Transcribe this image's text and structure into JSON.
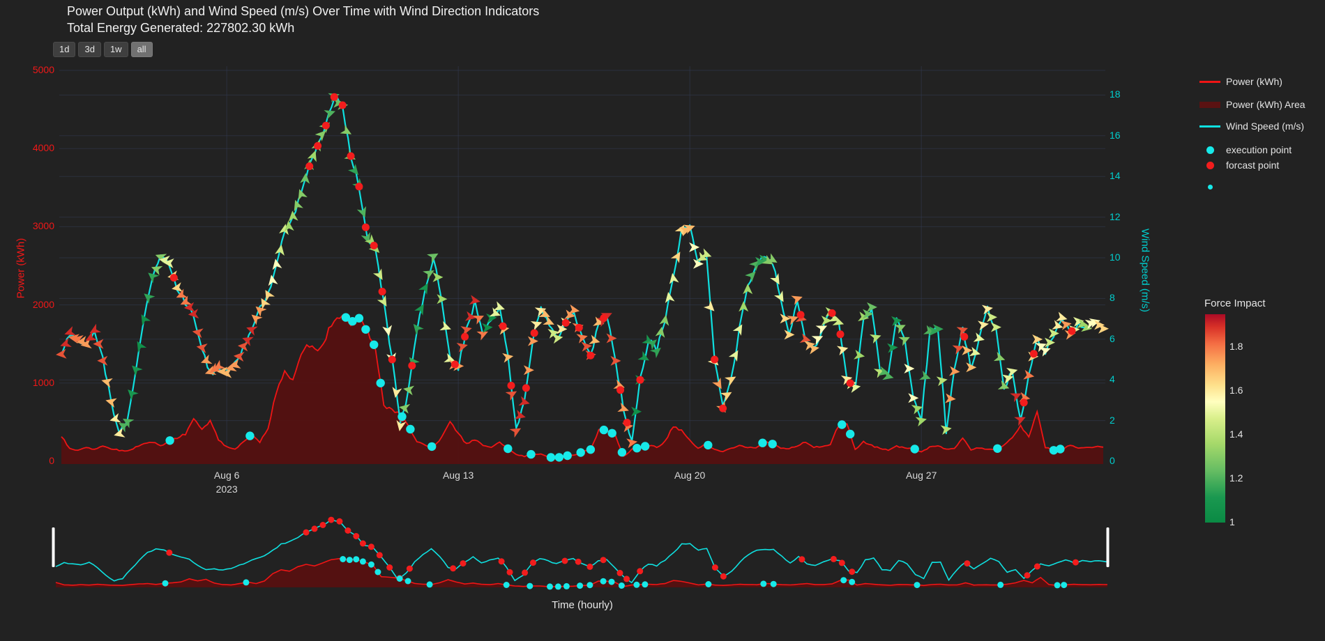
{
  "header": {
    "title": "Power Output (kWh) and Wind Speed (m/s) Over Time with Wind Direction Indicators",
    "subtitle": "Total Energy Generated: 227802.30 kWh"
  },
  "range_selector": {
    "buttons": [
      {
        "label": "1d",
        "active": false
      },
      {
        "label": "3d",
        "active": false
      },
      {
        "label": "1w",
        "active": false
      },
      {
        "label": "all",
        "active": true
      }
    ]
  },
  "axes": {
    "y_left": {
      "title": "Power (kWh)",
      "color": "#f01818",
      "ticks": [
        5000,
        4000,
        3000,
        2000,
        1000,
        0
      ]
    },
    "y_right": {
      "title": "Wind Speed (m/s)",
      "color": "#00cfcf",
      "ticks": [
        18,
        16,
        14,
        12,
        10,
        8,
        6,
        4,
        2,
        0
      ]
    },
    "x": {
      "title": "Time (hourly)",
      "ticks": [
        {
          "label": "Aug 6",
          "sub": "2023",
          "day": 5
        },
        {
          "label": "Aug 13",
          "sub": "",
          "day": 12
        },
        {
          "label": "Aug 20",
          "sub": "",
          "day": 19
        },
        {
          "label": "Aug 27",
          "sub": "",
          "day": 26
        }
      ]
    }
  },
  "legend": {
    "items": [
      {
        "label": "Power (kWh)",
        "swatch": "line",
        "color": "#f01515"
      },
      {
        "label": "Power (kWh) Area",
        "swatch": "band",
        "color": "#5a1212"
      },
      {
        "label": "Wind Speed (m/s)",
        "swatch": "line",
        "color": "#0fe0e0"
      },
      {
        "label": "execution point",
        "swatch": "dot",
        "color": "#17e9e9"
      },
      {
        "label": "forcast point",
        "swatch": "dot",
        "color": "#f21d1d"
      },
      {
        "label": "",
        "swatch": "dot-small",
        "color": "#17e9e9"
      }
    ]
  },
  "colorbar": {
    "title": "Force Impact",
    "min": 1,
    "max": 1.95,
    "ticks": [
      1.8,
      1.6,
      1.4,
      1.2,
      1
    ]
  },
  "chart_data": {
    "type": "line",
    "title": "Power Output (kWh) and Wind Speed (m/s) Over Time with Wind Direction Indicators",
    "x_start": "2023-08-01 00:00",
    "x_step_hours": 6,
    "x_axis_range_days": [
      0,
      31.5
    ],
    "y_left_range": [
      0,
      5050
    ],
    "y_right_range": [
      0,
      19.5
    ],
    "grid": true,
    "legend_position": "right",
    "series": [
      {
        "name": "Power (kWh)",
        "yaxis": "left",
        "color": "#f01515",
        "fill_color": "#541111",
        "values": [
          320,
          160,
          140,
          180,
          150,
          200,
          160,
          140,
          130,
          180,
          220,
          250,
          190,
          260,
          300,
          350,
          560,
          420,
          520,
          280,
          180,
          160,
          240,
          345,
          250,
          420,
          900,
          1150,
          1050,
          1350,
          1500,
          1400,
          1600,
          1800,
          1880,
          1780,
          1830,
          1650,
          1450,
          700,
          660,
          600,
          450,
          250,
          200,
          185,
          300,
          500,
          350,
          220,
          280,
          200,
          180,
          250,
          160,
          90,
          60,
          95,
          90,
          50,
          45,
          70,
          75,
          120,
          150,
          400,
          400,
          330,
          60,
          150,
          180,
          200,
          180,
          250,
          450,
          390,
          275,
          160,
          220,
          150,
          130,
          160,
          200,
          180,
          170,
          250,
          220,
          170,
          160,
          200,
          250,
          180,
          180,
          220,
          460,
          480,
          150,
          250,
          200,
          165,
          140,
          190,
          170,
          165,
          120,
          180,
          200,
          150,
          160,
          300,
          150,
          170,
          160,
          150,
          210,
          300,
          450,
          300,
          650,
          180,
          140,
          160,
          200,
          170,
          170,
          190,
          175
        ]
      },
      {
        "name": "Wind Speed (m/s)",
        "yaxis": "right",
        "color": "#0fe0e0",
        "values": [
          5.3,
          6.3,
          6.0,
          5.8,
          6.5,
          5.0,
          3.0,
          1.3,
          2.0,
          4.5,
          7.0,
          9.0,
          10.0,
          9.8,
          8.5,
          7.8,
          7.2,
          5.5,
          4.3,
          4.6,
          4.4,
          4.8,
          5.6,
          6.5,
          7.5,
          8.2,
          9.6,
          11.3,
          12.0,
          13.2,
          14.5,
          15.5,
          16.5,
          17.9,
          17.5,
          15.0,
          13.5,
          11.0,
          10.5,
          7.8,
          5.0,
          1.8,
          3.5,
          6.5,
          8.5,
          10.0,
          8.0,
          5.0,
          4.6,
          6.5,
          7.8,
          6.3,
          7.0,
          7.6,
          5.2,
          1.5,
          3.0,
          6.0,
          7.5,
          6.8,
          6.0,
          6.8,
          7.4,
          6.0,
          5.2,
          6.8,
          7.2,
          5.0,
          2.5,
          1.0,
          4.0,
          6.0,
          5.5,
          7.0,
          9.0,
          11.3,
          11.5,
          9.7,
          10.2,
          5.0,
          2.6,
          4.0,
          6.5,
          8.5,
          9.7,
          10.0,
          9.8,
          8.0,
          6.2,
          8.0,
          6.0,
          5.5,
          6.5,
          7.4,
          6.8,
          4.0,
          3.6,
          7.0,
          7.5,
          4.5,
          4.2,
          7.0,
          6.0,
          3.2,
          2.0,
          6.3,
          6.6,
          1.5,
          4.5,
          6.5,
          4.6,
          6.0,
          7.5,
          6.5,
          3.6,
          4.4,
          2.0,
          4.2,
          6.0,
          5.4,
          6.2,
          7.0,
          6.3,
          6.8,
          6.5,
          6.9,
          6.6
        ]
      }
    ],
    "wind_direction_arrows": {
      "colorscale": "RdYlGn_reversed",
      "dir_deg": [
        185,
        200,
        170,
        190,
        210,
        180,
        165,
        195,
        150,
        135,
        120,
        140,
        160,
        175,
        190,
        205,
        185,
        170,
        200,
        215,
        180,
        195,
        175,
        160,
        140,
        120,
        100,
        80,
        95,
        110,
        85,
        70,
        45,
        20,
        0,
        -30,
        -50,
        -70,
        -45,
        -60,
        -80,
        -100,
        170,
        130,
        60,
        30,
        0,
        -20,
        0,
        15,
        -10,
        25,
        5,
        -20,
        10,
        30,
        -15,
        0,
        20,
        -25,
        10,
        0,
        -10,
        15,
        5,
        -15,
        25,
        0,
        -20,
        10,
        0,
        -30,
        40,
        80,
        100,
        60,
        20,
        0,
        -20,
        -45,
        -60,
        30,
        60,
        90,
        45,
        0,
        -30,
        -60,
        0,
        20,
        -15,
        10,
        25,
        0,
        -20,
        15,
        10,
        -10,
        0,
        20,
        -15,
        5,
        25,
        0,
        15,
        -20,
        0,
        10,
        -5,
        20,
        0,
        -15,
        10,
        0,
        -20,
        15,
        25,
        -10,
        0,
        20,
        0,
        -15,
        10,
        5,
        -10,
        15,
        0
      ],
      "force_impact": [
        1.85,
        1.9,
        1.8,
        1.75,
        1.9,
        1.85,
        1.7,
        1.6,
        1.2,
        1.1,
        1.05,
        1.15,
        1.3,
        1.5,
        1.65,
        1.8,
        1.9,
        1.85,
        1.75,
        1.8,
        1.7,
        1.75,
        1.85,
        1.9,
        1.75,
        1.65,
        1.55,
        1.45,
        1.35,
        1.3,
        1.25,
        1.35,
        1.3,
        1.2,
        1.25,
        1.3,
        1.15,
        1.2,
        1.35,
        1.45,
        1.55,
        1.6,
        1.3,
        1.15,
        1.1,
        1.25,
        1.35,
        1.5,
        1.75,
        1.85,
        1.9,
        1.8,
        1.05,
        1.5,
        1.7,
        1.85,
        1.9,
        1.75,
        1.6,
        1.7,
        1.45,
        1.6,
        1.75,
        1.8,
        1.85,
        1.7,
        1.9,
        1.85,
        1.75,
        1.8,
        1.05,
        1.1,
        1.15,
        1.3,
        1.5,
        1.65,
        1.7,
        1.55,
        1.45,
        1.6,
        1.75,
        1.65,
        1.5,
        1.35,
        1.2,
        1.15,
        1.3,
        1.5,
        1.65,
        1.75,
        1.85,
        1.7,
        1.55,
        1.4,
        1.45,
        1.6,
        1.5,
        1.35,
        1.25,
        1.4,
        1.2,
        1.1,
        1.3,
        1.55,
        1.35,
        1.2,
        1.15,
        1.4,
        1.75,
        1.85,
        1.7,
        1.5,
        1.6,
        1.45,
        1.3,
        1.5,
        1.9,
        1.8,
        1.65,
        1.55,
        1.45,
        1.6,
        1.75,
        1.5,
        1.35,
        1.55,
        1.65
      ]
    },
    "execution_points_days": [
      3.28,
      5.7,
      8.6,
      8.8,
      9.0,
      9.2,
      9.45,
      9.65,
      10.3,
      10.55,
      11.2,
      13.5,
      14.2,
      14.8,
      15.05,
      15.3,
      15.7,
      16.0,
      16.4,
      16.65,
      16.95,
      17.4,
      17.65,
      19.55,
      21.2,
      21.5,
      23.6,
      23.85,
      25.8,
      28.3,
      30.0,
      30.2
    ],
    "forecast_points_days": [
      3.4,
      7.5,
      7.75,
      8.0,
      8.25,
      8.5,
      8.75,
      9.0,
      9.2,
      9.45,
      9.7,
      10.0,
      10.3,
      10.6,
      11.9,
      12.2,
      13.35,
      13.6,
      14.05,
      14.3,
      15.25,
      15.65,
      16.0,
      16.4,
      16.9,
      17.1,
      17.5,
      19.75,
      20.0,
      22.35,
      23.3,
      23.55,
      23.85,
      27.3,
      29.1,
      29.4,
      30.55
    ]
  }
}
